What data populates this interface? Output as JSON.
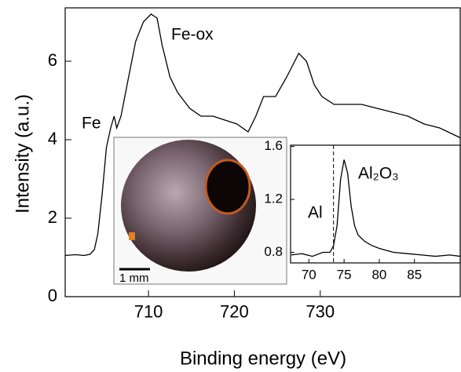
{
  "chart_data": [
    {
      "type": "line",
      "x_label": "Binding energy (eV)",
      "y_label": "Intensity (a.u.)",
      "xlim": [
        700.3,
        746.3
      ],
      "ylim": [
        0,
        7.36
      ],
      "xticks": [
        710,
        720,
        730
      ],
      "yticks": [
        0,
        2,
        4,
        6
      ],
      "annotations": [
        "Fe",
        "Fe-ox"
      ],
      "series": [
        {
          "color": "#000000",
          "x": [
            700.3,
            701.5,
            702.5,
            703.2,
            703.7,
            704.1,
            704.6,
            705.1,
            705.6,
            706.0,
            706.3,
            706.8,
            707.6,
            708.5,
            709.4,
            710.3,
            711.0,
            711.6,
            712.5,
            713.4,
            714.8,
            716.1,
            717.5,
            718.9,
            720.3,
            721.6,
            722.5,
            723.4,
            724.8,
            726.1,
            727.5,
            728.4,
            729.3,
            730.2,
            731.6,
            733.0,
            734.8,
            736.6,
            738.4,
            740.2,
            742.1,
            743.9,
            746.3
          ],
          "values": [
            1.05,
            1.07,
            1.05,
            1.08,
            1.2,
            1.6,
            2.6,
            3.8,
            4.3,
            4.6,
            4.3,
            4.6,
            5.5,
            6.5,
            7.0,
            7.2,
            7.1,
            6.4,
            5.6,
            5.2,
            4.8,
            4.6,
            4.6,
            4.5,
            4.4,
            4.2,
            4.6,
            5.1,
            5.1,
            5.6,
            6.2,
            6.0,
            5.4,
            5.1,
            4.9,
            4.9,
            4.9,
            4.8,
            4.7,
            4.6,
            4.4,
            4.3,
            4.05
          ]
        }
      ],
      "inset_photo": {
        "scale_label": "1 mm"
      }
    },
    {
      "type": "line",
      "xlim": [
        67.4,
        91.5
      ],
      "ylim": [
        0.72,
        1.61
      ],
      "xticks": [
        70,
        75,
        80,
        85
      ],
      "yticks": [
        0.8,
        1.2,
        1.6
      ],
      "annotations": [
        "Al",
        "Al₂O₃"
      ],
      "reference_line": 73.5,
      "series": [
        {
          "color": "#000000",
          "x": [
            67.5,
            69,
            70.5,
            72,
            73,
            73.5,
            74,
            74.5,
            75,
            75.5,
            76,
            76.5,
            77,
            78,
            79,
            80,
            82,
            84,
            86,
            88,
            90,
            91.5
          ],
          "values": [
            0.78,
            0.79,
            0.77,
            0.8,
            0.8,
            0.85,
            1.0,
            1.35,
            1.5,
            1.4,
            1.15,
            1.0,
            0.93,
            0.88,
            0.85,
            0.83,
            0.8,
            0.79,
            0.78,
            0.77,
            0.78,
            0.77
          ]
        }
      ]
    }
  ]
}
